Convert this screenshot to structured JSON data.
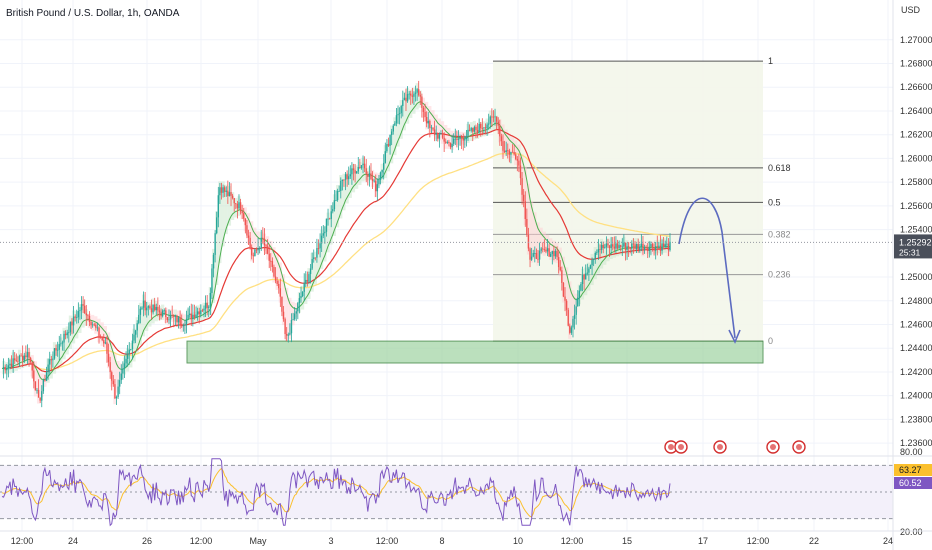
{
  "header": {
    "symbol_title": "British Pound / U.S. Dollar, 1h, OANDA",
    "currency": "USD"
  },
  "price_axis": {
    "ticks": [
      "1.27000",
      "1.26800",
      "1.26600",
      "1.26400",
      "1.26200",
      "1.26000",
      "1.25800",
      "1.25600",
      "1.25400",
      "1.25000",
      "1.24800",
      "1.24600",
      "1.24400",
      "1.24200",
      "1.24000",
      "1.23800",
      "1.23600"
    ],
    "current_price": "1.25292",
    "countdown": "25:31"
  },
  "rsi_axis": {
    "ticks": [
      "80.00",
      "20.00"
    ],
    "rsi_value": "63.27",
    "rsi_ma_value": "60.52"
  },
  "time_axis": {
    "labels": [
      "12:00",
      "24",
      "26",
      "12:00",
      "May",
      "3",
      "12:00",
      "8",
      "10",
      "12:00",
      "15",
      "17",
      "12:00",
      "22",
      "24"
    ]
  },
  "fibonacci": {
    "levels": [
      "1",
      "0.618",
      "0.5",
      "0.382",
      "0.236",
      "0"
    ]
  },
  "colors": {
    "bull": "#26a69a",
    "bear": "#ef5350",
    "ema_fast": "#4caf50",
    "ema_mid": "#e53935",
    "ema_slow": "#ffe082",
    "rsi": "#7e57c2",
    "rsi_ma": "#fbc02d",
    "zone_fill": "#a5d6a7",
    "zone_border": "#2e7d32",
    "arrow": "#5c6bc0",
    "price_tag": "#4a4f5a"
  },
  "chart_data": {
    "type": "candlestick",
    "title": "British Pound / U.S. Dollar, 1h, OANDA",
    "ylim": [
      1.235,
      1.2715
    ],
    "close_path": [
      [
        0,
        1.2423
      ],
      [
        0.04,
        1.2436
      ],
      [
        0.055,
        1.2394
      ],
      [
        0.07,
        1.2428
      ],
      [
        0.12,
        1.2476
      ],
      [
        0.155,
        1.2442
      ],
      [
        0.17,
        1.2398
      ],
      [
        0.21,
        1.2477
      ],
      [
        0.27,
        1.2462
      ],
      [
        0.31,
        1.2478
      ],
      [
        0.325,
        1.2577
      ],
      [
        0.36,
        1.2557
      ],
      [
        0.375,
        1.2516
      ],
      [
        0.39,
        1.2532
      ],
      [
        0.415,
        1.2487
      ],
      [
        0.425,
        1.2446
      ],
      [
        0.45,
        1.2488
      ],
      [
        0.48,
        1.2537
      ],
      [
        0.51,
        1.2582
      ],
      [
        0.54,
        1.2596
      ],
      [
        0.56,
        1.2575
      ],
      [
        0.585,
        1.2628
      ],
      [
        0.6,
        1.2646
      ],
      [
        0.62,
        1.2659
      ],
      [
        0.64,
        1.2625
      ],
      [
        0.67,
        1.2612
      ],
      [
        0.705,
        1.2623
      ],
      [
        0.73,
        1.2631
      ],
      [
        0.74,
        1.2636
      ],
      [
        0.75,
        1.2608
      ],
      [
        0.772,
        1.2602
      ],
      [
        0.783,
        1.2554
      ],
      [
        0.79,
        1.2515
      ],
      [
        0.81,
        1.2521
      ],
      [
        0.83,
        1.2521
      ],
      [
        0.85,
        1.2455
      ],
      [
        0.868,
        1.2497
      ],
      [
        0.89,
        1.2524
      ],
      [
        0.915,
        1.2526
      ]
    ],
    "fibonacci": [
      {
        "level": "1",
        "price": 1.2682
      },
      {
        "level": "0.618",
        "price": 1.2592
      },
      {
        "level": "0.5",
        "price": 1.2563
      },
      {
        "level": "0.382",
        "price": 1.2536
      },
      {
        "level": "0.236",
        "price": 1.2502
      },
      {
        "level": "0",
        "price": 1.2446
      }
    ],
    "support_zone": [
      1.2436,
      1.2446
    ],
    "rsi": {
      "ylim": [
        20,
        80
      ],
      "overbought": 70,
      "oversold": 30,
      "current": 63.27,
      "ma": 60.52
    }
  }
}
